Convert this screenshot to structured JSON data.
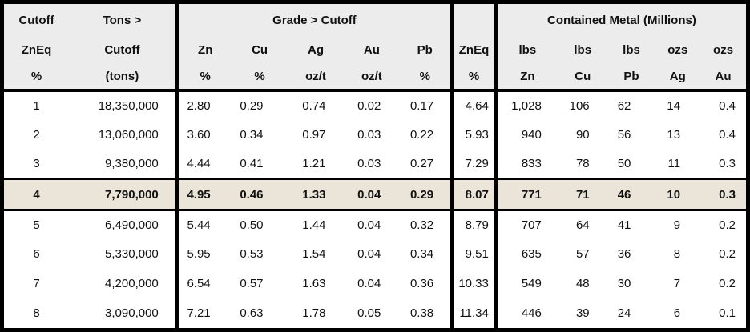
{
  "colors": {
    "border": "#000000",
    "header_bg": "#ececec",
    "highlight_bg": "#eae5d8",
    "row_bg": "#ffffff"
  },
  "header": {
    "cutoff_col": [
      "Cutoff",
      "ZnEq",
      "%"
    ],
    "tons_col": [
      "Tons >",
      "Cutoff",
      "(tons)"
    ],
    "grade_group_label": "Grade > Cutoff",
    "grade_cols": [
      [
        "Zn",
        "%"
      ],
      [
        "Cu",
        "%"
      ],
      [
        "Ag",
        "oz/t"
      ],
      [
        "Au",
        "oz/t"
      ],
      [
        "Pb",
        "%"
      ]
    ],
    "zneq_col": [
      "",
      "ZnEq",
      "%"
    ],
    "metal_group_label": "Contained Metal (Millions)",
    "metal_cols": [
      [
        "lbs",
        "Zn"
      ],
      [
        "lbs",
        "Cu"
      ],
      [
        "lbs",
        "Pb"
      ],
      [
        "ozs",
        "Ag"
      ],
      [
        "ozs",
        "Au"
      ]
    ]
  },
  "rows": [
    {
      "cutoff": "1",
      "tons": "18,350,000",
      "zn": "2.80",
      "cu": "0.29",
      "ag": "0.74",
      "au": "0.02",
      "pb": "0.17",
      "zneq": "4.64",
      "lbs_zn": "1,028",
      "lbs_cu": "106",
      "lbs_pb": "62",
      "ozs_ag": "14",
      "ozs_au": "0.4",
      "highlight": false
    },
    {
      "cutoff": "2",
      "tons": "13,060,000",
      "zn": "3.60",
      "cu": "0.34",
      "ag": "0.97",
      "au": "0.03",
      "pb": "0.22",
      "zneq": "5.93",
      "lbs_zn": "940",
      "lbs_cu": "90",
      "lbs_pb": "56",
      "ozs_ag": "13",
      "ozs_au": "0.4",
      "highlight": false
    },
    {
      "cutoff": "3",
      "tons": "9,380,000",
      "zn": "4.44",
      "cu": "0.41",
      "ag": "1.21",
      "au": "0.03",
      "pb": "0.27",
      "zneq": "7.29",
      "lbs_zn": "833",
      "lbs_cu": "78",
      "lbs_pb": "50",
      "ozs_ag": "11",
      "ozs_au": "0.3",
      "highlight": false
    },
    {
      "cutoff": "4",
      "tons": "7,790,000",
      "zn": "4.95",
      "cu": "0.46",
      "ag": "1.33",
      "au": "0.04",
      "pb": "0.29",
      "zneq": "8.07",
      "lbs_zn": "771",
      "lbs_cu": "71",
      "lbs_pb": "46",
      "ozs_ag": "10",
      "ozs_au": "0.3",
      "highlight": true
    },
    {
      "cutoff": "5",
      "tons": "6,490,000",
      "zn": "5.44",
      "cu": "0.50",
      "ag": "1.44",
      "au": "0.04",
      "pb": "0.32",
      "zneq": "8.79",
      "lbs_zn": "707",
      "lbs_cu": "64",
      "lbs_pb": "41",
      "ozs_ag": "9",
      "ozs_au": "0.2",
      "highlight": false
    },
    {
      "cutoff": "6",
      "tons": "5,330,000",
      "zn": "5.95",
      "cu": "0.53",
      "ag": "1.54",
      "au": "0.04",
      "pb": "0.34",
      "zneq": "9.51",
      "lbs_zn": "635",
      "lbs_cu": "57",
      "lbs_pb": "36",
      "ozs_ag": "8",
      "ozs_au": "0.2",
      "highlight": false
    },
    {
      "cutoff": "7",
      "tons": "4,200,000",
      "zn": "6.54",
      "cu": "0.57",
      "ag": "1.63",
      "au": "0.04",
      "pb": "0.36",
      "zneq": "10.33",
      "lbs_zn": "549",
      "lbs_cu": "48",
      "lbs_pb": "30",
      "ozs_ag": "7",
      "ozs_au": "0.2",
      "highlight": false
    },
    {
      "cutoff": "8",
      "tons": "3,090,000",
      "zn": "7.21",
      "cu": "0.63",
      "ag": "1.78",
      "au": "0.05",
      "pb": "0.38",
      "zneq": "11.34",
      "lbs_zn": "446",
      "lbs_cu": "39",
      "lbs_pb": "24",
      "ozs_ag": "6",
      "ozs_au": "0.1",
      "highlight": false
    }
  ]
}
